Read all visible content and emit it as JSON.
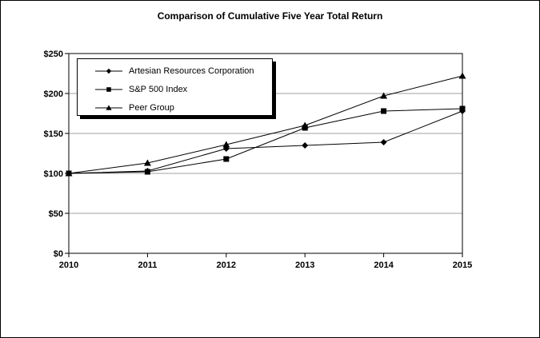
{
  "window": {
    "background": "#ffffff",
    "border_color": "#000000"
  },
  "chart_data": {
    "type": "line",
    "title": "Comparison of Cumulative Five Year Total Return",
    "categories": [
      "2010",
      "2011",
      "2012",
      "2013",
      "2014",
      "2015"
    ],
    "series": [
      {
        "name": "Artesian Resources Corporation",
        "marker": "diamond",
        "color": "#000000",
        "values": [
          100,
          103,
          131,
          135,
          139,
          178
        ]
      },
      {
        "name": "S&P 500 Index",
        "marker": "square",
        "color": "#000000",
        "values": [
          100,
          102,
          118,
          157,
          178,
          181
        ]
      },
      {
        "name": "Peer Group",
        "marker": "triangle",
        "color": "#000000",
        "values": [
          100,
          113,
          136,
          160,
          197,
          222
        ]
      }
    ],
    "xlabel": "",
    "ylabel": "",
    "ylim": [
      0,
      250
    ],
    "ytick_step": 50,
    "ytick_labels": [
      "$0",
      "$50",
      "$100",
      "$150",
      "$200",
      "$250"
    ],
    "grid": "horizontal",
    "gridline_color": "#a0a0a0",
    "axis_color": "#000000",
    "legend_position": "top-left-inset"
  }
}
